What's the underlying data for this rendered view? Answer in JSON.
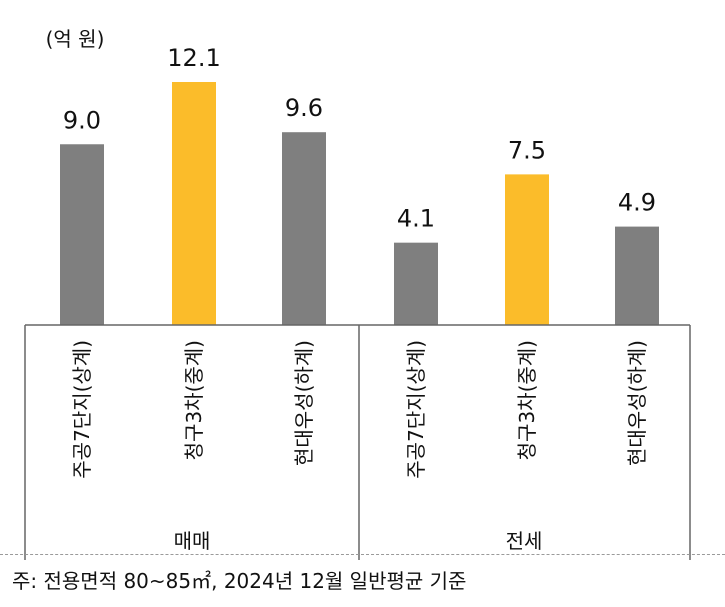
{
  "chart_data": {
    "type": "bar",
    "unit_label": "(억 원)",
    "groups": [
      {
        "name": "매매",
        "categories": [
          "주공7단지(상계)",
          "청구3차(중계)",
          "현대우성(하계)"
        ],
        "values": [
          9.0,
          12.1,
          9.6
        ]
      },
      {
        "name": "전세",
        "categories": [
          "주공7단지(상계)",
          "청구3차(중계)",
          "현대우성(하계)"
        ],
        "values": [
          4.1,
          7.5,
          4.9
        ]
      }
    ],
    "value_labels": [
      [
        "9.0",
        "12.1",
        "9.6"
      ],
      [
        "4.1",
        "7.5",
        "4.9"
      ]
    ],
    "bar_colors": [
      "#7f7f7f",
      "#fbbc2a",
      "#7f7f7f"
    ],
    "ylim": [
      0,
      12.1
    ],
    "grid": false,
    "legend": "none"
  },
  "footnote": "주: 전용면적 80~85㎡, 2024년 12월 일반평균 기준"
}
